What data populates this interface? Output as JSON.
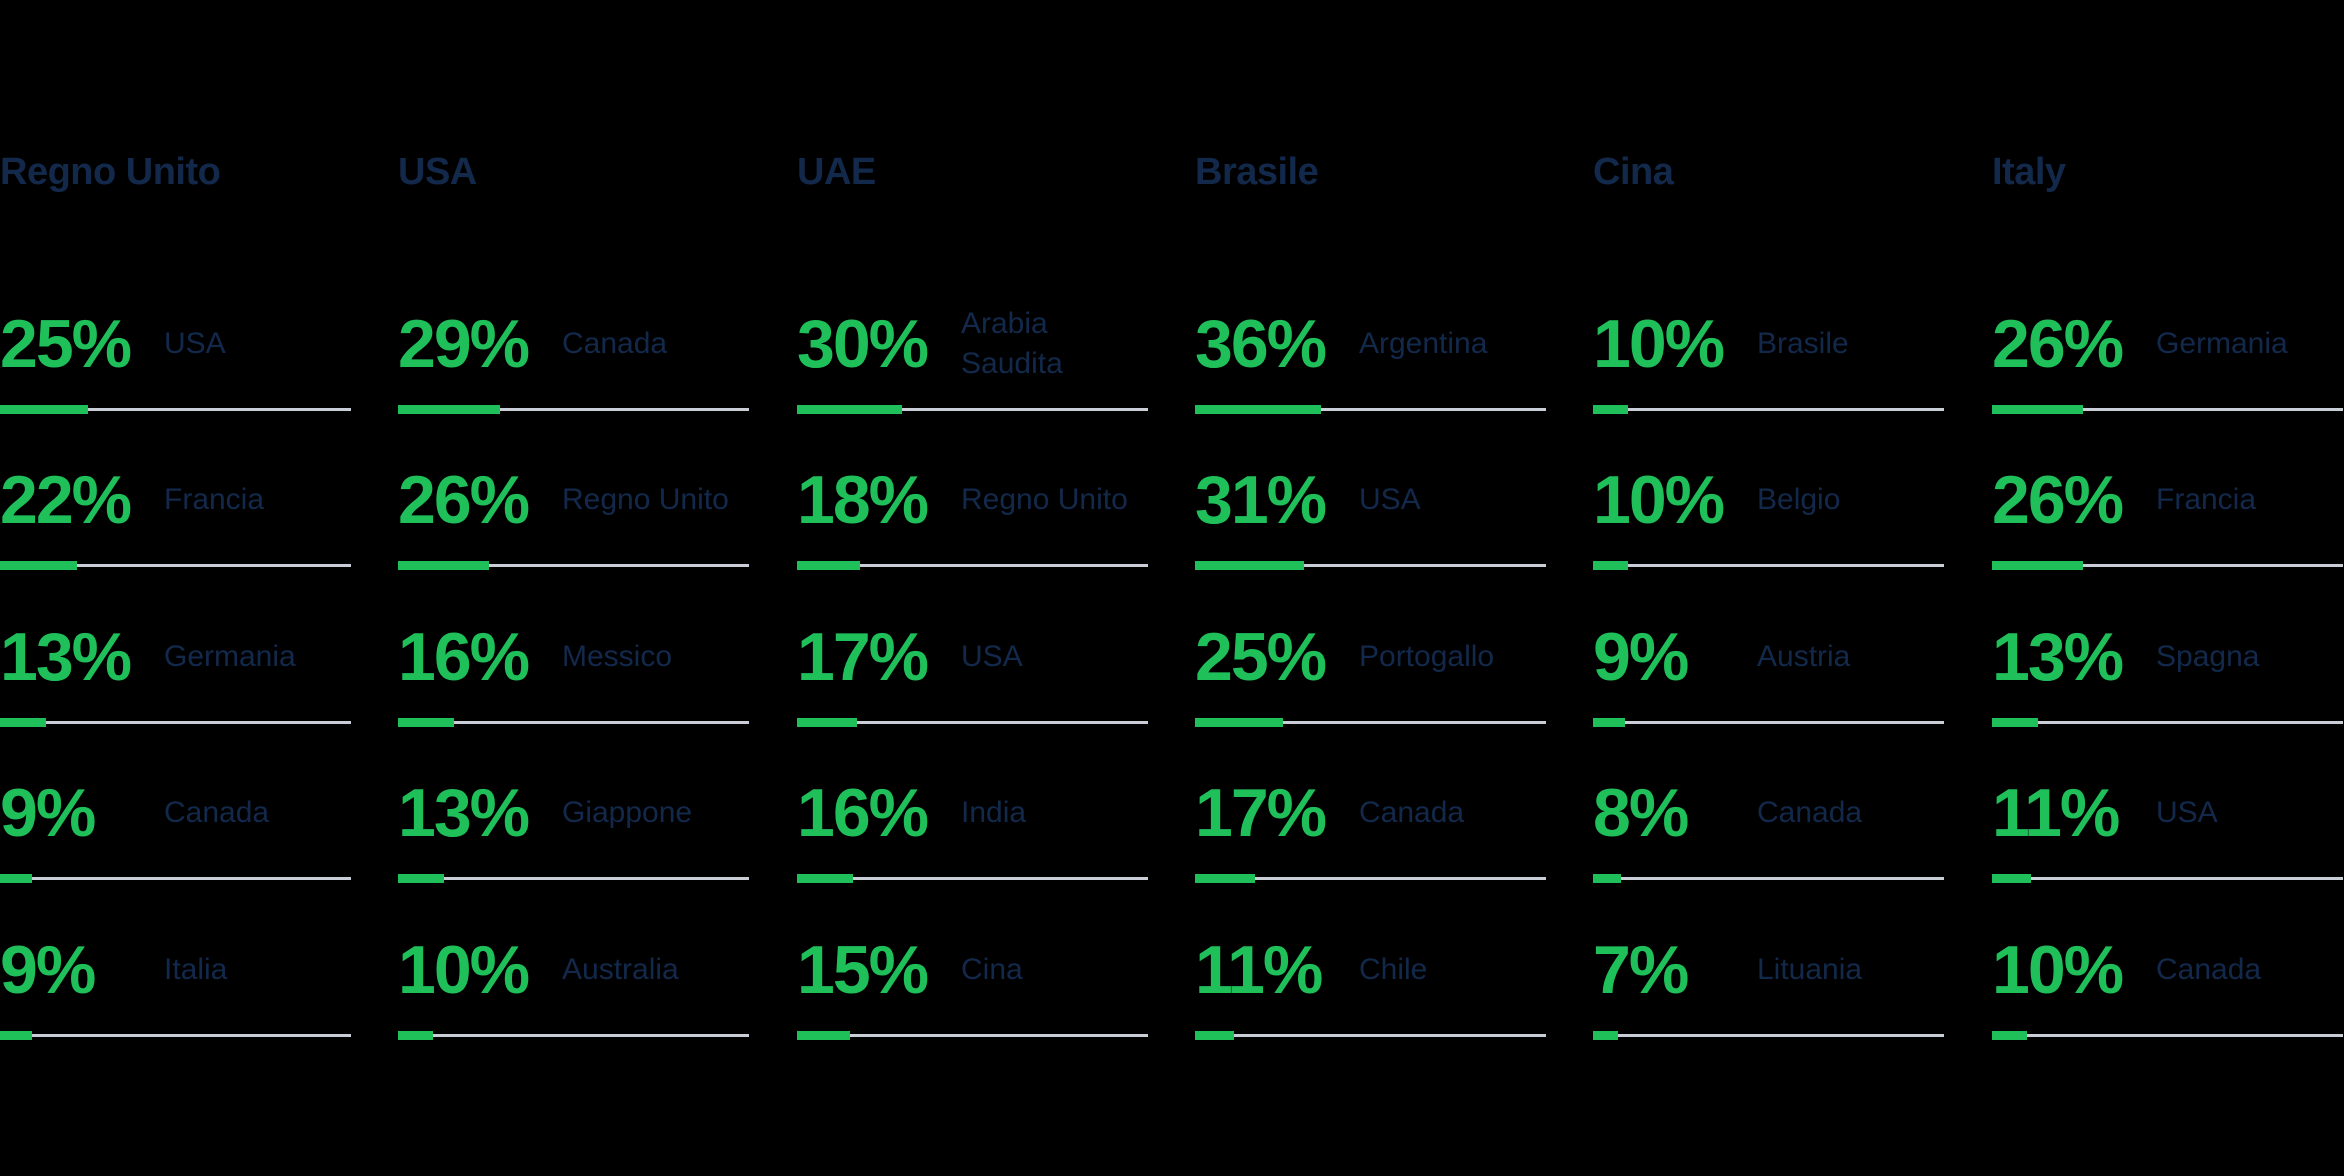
{
  "colors": {
    "background": "#000000",
    "accent_green": "#1FC05A",
    "navy": "#13294B",
    "track_gray": "#C9CDD5"
  },
  "columns": [
    {
      "title": "Regno Unito",
      "rows": [
        {
          "pct_label": "25%",
          "value": 25,
          "country": "USA"
        },
        {
          "pct_label": "22%",
          "value": 22,
          "country": "Francia"
        },
        {
          "pct_label": "13%",
          "value": 13,
          "country": "Germania"
        },
        {
          "pct_label": "9%",
          "value": 9,
          "country": "Canada"
        },
        {
          "pct_label": "9%",
          "value": 9,
          "country": "Italia"
        }
      ]
    },
    {
      "title": "USA",
      "rows": [
        {
          "pct_label": "29%",
          "value": 29,
          "country": "Canada"
        },
        {
          "pct_label": "26%",
          "value": 26,
          "country": "Regno Unito"
        },
        {
          "pct_label": "16%",
          "value": 16,
          "country": "Messico"
        },
        {
          "pct_label": "13%",
          "value": 13,
          "country": "Giappone"
        },
        {
          "pct_label": "10%",
          "value": 10,
          "country": "Australia"
        }
      ]
    },
    {
      "title": "UAE",
      "rows": [
        {
          "pct_label": "30%",
          "value": 30,
          "country": "Arabia Saudita"
        },
        {
          "pct_label": "18%",
          "value": 18,
          "country": "Regno Unito"
        },
        {
          "pct_label": "17%",
          "value": 17,
          "country": "USA"
        },
        {
          "pct_label": "16%",
          "value": 16,
          "country": "India"
        },
        {
          "pct_label": "15%",
          "value": 15,
          "country": "Cina"
        }
      ]
    },
    {
      "title": "Brasile",
      "rows": [
        {
          "pct_label": "36%",
          "value": 36,
          "country": "Argentina"
        },
        {
          "pct_label": "31%",
          "value": 31,
          "country": "USA"
        },
        {
          "pct_label": "25%",
          "value": 25,
          "country": "Portogallo"
        },
        {
          "pct_label": "17%",
          "value": 17,
          "country": "Canada"
        },
        {
          "pct_label": "11%",
          "value": 11,
          "country": "Chile"
        }
      ]
    },
    {
      "title": "Cina",
      "rows": [
        {
          "pct_label": "10%",
          "value": 10,
          "country": "Brasile"
        },
        {
          "pct_label": "10%",
          "value": 10,
          "country": "Belgio"
        },
        {
          "pct_label": "9%",
          "value": 9,
          "country": "Austria"
        },
        {
          "pct_label": "8%",
          "value": 8,
          "country": "Canada"
        },
        {
          "pct_label": "7%",
          "value": 7,
          "country": "Lituania"
        }
      ]
    },
    {
      "title": "Italy",
      "rows": [
        {
          "pct_label": "26%",
          "value": 26,
          "country": "Germania"
        },
        {
          "pct_label": "26%",
          "value": 26,
          "country": "Francia"
        },
        {
          "pct_label": "13%",
          "value": 13,
          "country": "Spagna"
        },
        {
          "pct_label": "11%",
          "value": 11,
          "country": "USA"
        },
        {
          "pct_label": "10%",
          "value": 10,
          "country": "Canada"
        }
      ]
    }
  ],
  "chart_data": [
    {
      "type": "bar",
      "title": "Regno Unito",
      "orientation": "horizontal",
      "categories": [
        "USA",
        "Francia",
        "Germania",
        "Canada",
        "Italia"
      ],
      "values": [
        25,
        22,
        13,
        9,
        9
      ],
      "value_format": "percent",
      "xlim": [
        0,
        100
      ],
      "bar_color": "#1FC05A",
      "track_color": "#C9CDD5",
      "grid": false,
      "legend": "none"
    },
    {
      "type": "bar",
      "title": "USA",
      "orientation": "horizontal",
      "categories": [
        "Canada",
        "Regno Unito",
        "Messico",
        "Giappone",
        "Australia"
      ],
      "values": [
        29,
        26,
        16,
        13,
        10
      ],
      "value_format": "percent",
      "xlim": [
        0,
        100
      ],
      "bar_color": "#1FC05A",
      "track_color": "#C9CDD5",
      "grid": false,
      "legend": "none"
    },
    {
      "type": "bar",
      "title": "UAE",
      "orientation": "horizontal",
      "categories": [
        "Arabia Saudita",
        "Regno Unito",
        "USA",
        "India",
        "Cina"
      ],
      "values": [
        30,
        18,
        17,
        16,
        15
      ],
      "value_format": "percent",
      "xlim": [
        0,
        100
      ],
      "bar_color": "#1FC05A",
      "track_color": "#C9CDD5",
      "grid": false,
      "legend": "none"
    },
    {
      "type": "bar",
      "title": "Brasile",
      "orientation": "horizontal",
      "categories": [
        "Argentina",
        "USA",
        "Portogallo",
        "Canada",
        "Chile"
      ],
      "values": [
        36,
        31,
        25,
        17,
        11
      ],
      "value_format": "percent",
      "xlim": [
        0,
        100
      ],
      "bar_color": "#1FC05A",
      "track_color": "#C9CDD5",
      "grid": false,
      "legend": "none"
    },
    {
      "type": "bar",
      "title": "Cina",
      "orientation": "horizontal",
      "categories": [
        "Brasile",
        "Belgio",
        "Austria",
        "Canada",
        "Lituania"
      ],
      "values": [
        10,
        10,
        9,
        8,
        7
      ],
      "value_format": "percent",
      "xlim": [
        0,
        100
      ],
      "bar_color": "#1FC05A",
      "track_color": "#C9CDD5",
      "grid": false,
      "legend": "none"
    },
    {
      "type": "bar",
      "title": "Italy",
      "orientation": "horizontal",
      "categories": [
        "Germania",
        "Francia",
        "Spagna",
        "USA",
        "Canada"
      ],
      "values": [
        26,
        26,
        13,
        11,
        10
      ],
      "value_format": "percent",
      "xlim": [
        0,
        100
      ],
      "bar_color": "#1FC05A",
      "track_color": "#C9CDD5",
      "grid": false,
      "legend": "none"
    }
  ]
}
